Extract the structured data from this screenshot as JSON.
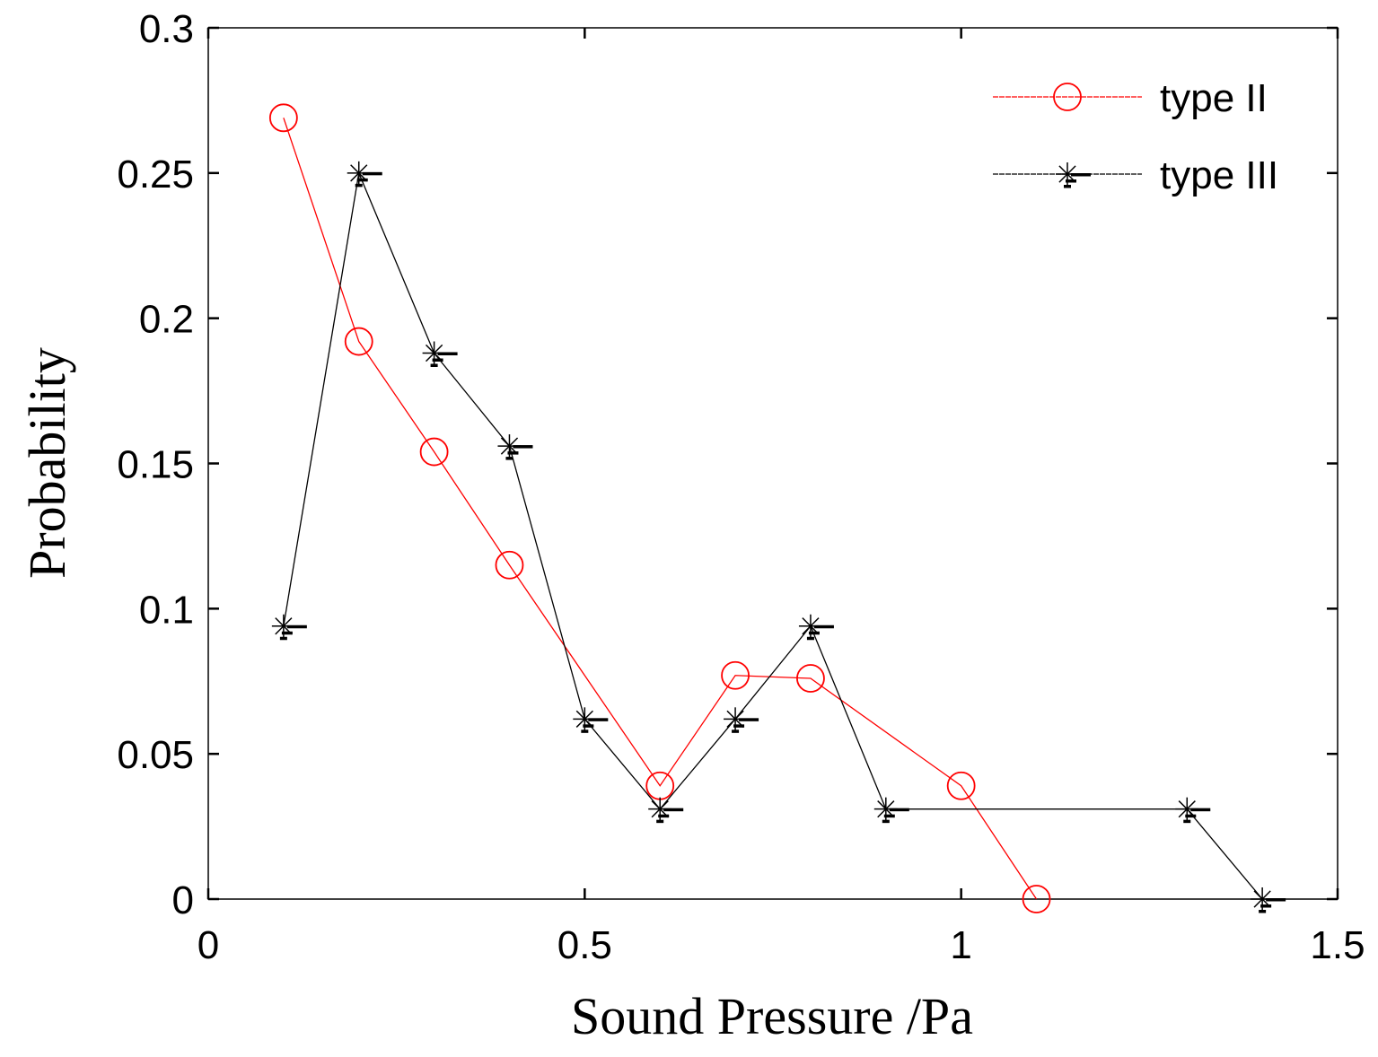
{
  "chart_data": {
    "type": "line",
    "title": "",
    "xlabel": "Sound Pressure /Pa",
    "ylabel": "Probability",
    "xlim": [
      0,
      1.5
    ],
    "ylim": [
      0,
      0.3
    ],
    "xticks": [
      0,
      0.5,
      1,
      1.5
    ],
    "xtick_labels": [
      "0",
      "0.5",
      "1",
      "1.5"
    ],
    "yticks": [
      0,
      0.05,
      0.1,
      0.15,
      0.2,
      0.25,
      0.3
    ],
    "ytick_labels": [
      "0",
      "0.05",
      "0.1",
      "0.15",
      "0.2",
      "0.25",
      "0.3"
    ],
    "grid": false,
    "legend_position": "top-right",
    "series": [
      {
        "name": "type II",
        "color": "#ff0000",
        "marker": "circle",
        "x": [
          0.1,
          0.2,
          0.3,
          0.4,
          0.6,
          0.7,
          0.8,
          1.0,
          1.1
        ],
        "y": [
          0.269,
          0.192,
          0.154,
          0.115,
          0.039,
          0.077,
          0.076,
          0.039,
          0.0
        ]
      },
      {
        "name": "type III",
        "color": "#000000",
        "marker": "asterisk",
        "x": [
          0.1,
          0.2,
          0.3,
          0.4,
          0.5,
          0.6,
          0.7,
          0.8,
          0.9,
          1.3,
          1.4
        ],
        "y": [
          0.094,
          0.25,
          0.188,
          0.156,
          0.062,
          0.031,
          0.062,
          0.094,
          0.031,
          0.031,
          0.0
        ]
      }
    ]
  }
}
